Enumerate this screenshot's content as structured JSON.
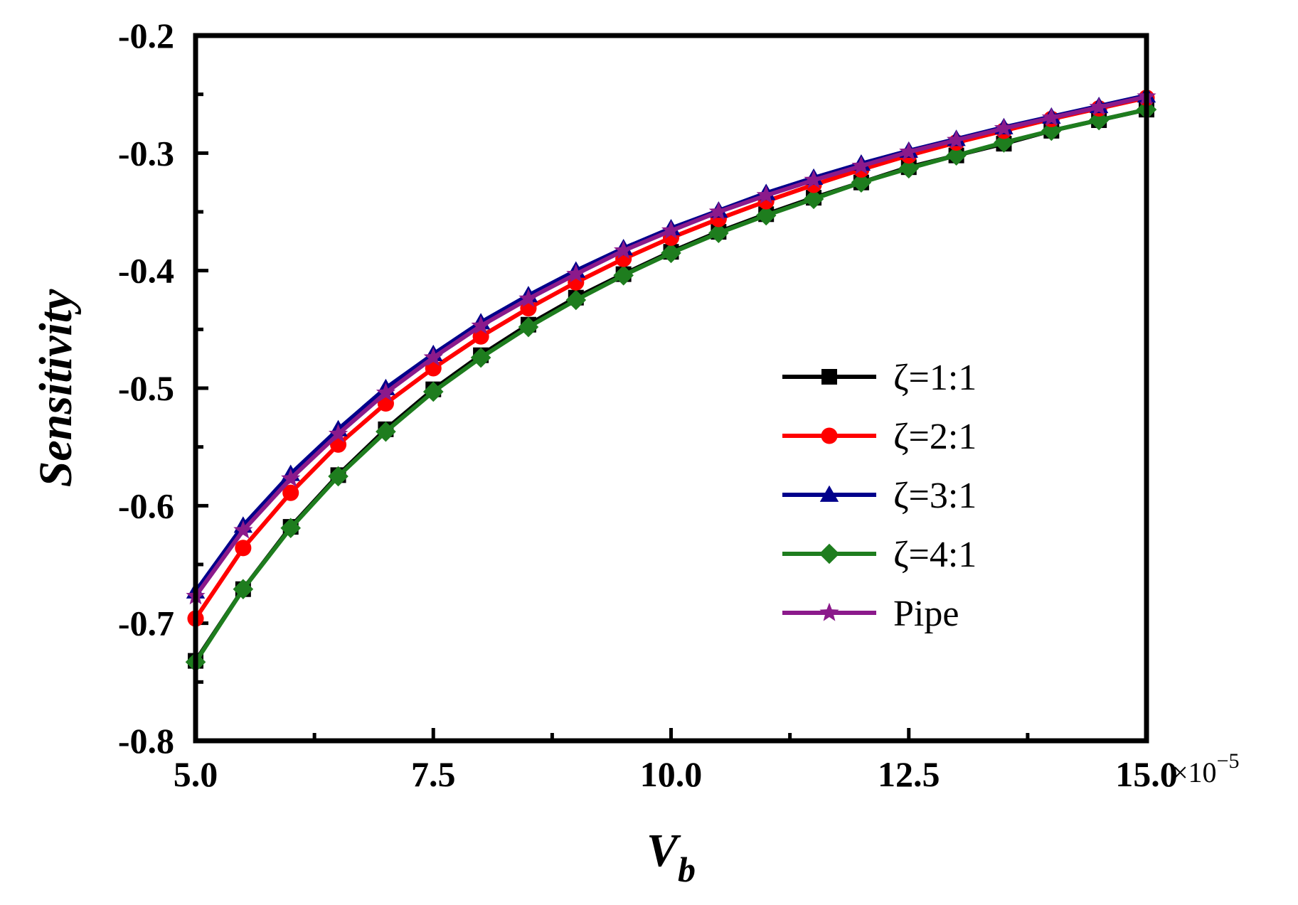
{
  "chart_data": {
    "type": "line",
    "title": "",
    "xlabel": "V",
    "xlabel_subscript": "b",
    "ylabel": "Sensitivity",
    "xlim": [
      5.0,
      15.0
    ],
    "ylim": [
      -0.8,
      -0.2
    ],
    "x_tick_labels": [
      "5.0",
      "7.5",
      "10.0",
      "12.5",
      "15.0"
    ],
    "x_ticks": [
      5.0,
      7.5,
      10.0,
      12.5,
      15.0
    ],
    "x_exponent_prefix": "×10",
    "x_exponent_power": "−5",
    "y_tick_labels": [
      "-0.2",
      "-0.3",
      "-0.4",
      "-0.5",
      "-0.6",
      "-0.7",
      "-0.8"
    ],
    "y_ticks": [
      -0.2,
      -0.3,
      -0.4,
      -0.5,
      -0.6,
      -0.7,
      -0.8
    ],
    "grid": false,
    "legend_position": "center-right",
    "x": [
      5.0,
      5.5,
      6.0,
      6.5,
      7.0,
      7.5,
      8.0,
      8.5,
      9.0,
      9.5,
      10.0,
      10.5,
      11.0,
      11.5,
      12.0,
      12.5,
      13.0,
      13.5,
      14.0,
      14.5,
      15.0
    ],
    "series": [
      {
        "name": "ζ=1:1",
        "color": "#000000",
        "marker": "square",
        "values": [
          -0.732,
          -0.671,
          -0.618,
          -0.574,
          -0.535,
          -0.501,
          -0.472,
          -0.446,
          -0.423,
          -0.403,
          -0.384,
          -0.367,
          -0.352,
          -0.338,
          -0.325,
          -0.312,
          -0.302,
          -0.292,
          -0.281,
          -0.272,
          -0.263
        ]
      },
      {
        "name": "ζ=2:1",
        "color": "#ff0000",
        "marker": "circle",
        "values": [
          -0.696,
          -0.636,
          -0.589,
          -0.548,
          -0.513,
          -0.483,
          -0.456,
          -0.432,
          -0.41,
          -0.39,
          -0.372,
          -0.356,
          -0.341,
          -0.327,
          -0.314,
          -0.302,
          -0.291,
          -0.281,
          -0.271,
          -0.262,
          -0.253
        ]
      },
      {
        "name": "ζ=3:1",
        "color": "#00008b",
        "marker": "triangle",
        "values": [
          -0.673,
          -0.617,
          -0.573,
          -0.535,
          -0.5,
          -0.471,
          -0.444,
          -0.421,
          -0.4,
          -0.381,
          -0.364,
          -0.349,
          -0.334,
          -0.321,
          -0.309,
          -0.298,
          -0.288,
          -0.278,
          -0.269,
          -0.26,
          -0.251
        ]
      },
      {
        "name": "ζ=4:1",
        "color": "#1e7d1e",
        "marker": "diamond",
        "values": [
          -0.733,
          -0.671,
          -0.619,
          -0.575,
          -0.537,
          -0.503,
          -0.474,
          -0.448,
          -0.425,
          -0.404,
          -0.385,
          -0.368,
          -0.353,
          -0.339,
          -0.325,
          -0.313,
          -0.302,
          -0.291,
          -0.281,
          -0.272,
          -0.263
        ]
      },
      {
        "name": "Pipe",
        "color": "#8b1a8b",
        "marker": "star",
        "values": [
          -0.677,
          -0.621,
          -0.577,
          -0.539,
          -0.504,
          -0.474,
          -0.447,
          -0.424,
          -0.403,
          -0.383,
          -0.366,
          -0.35,
          -0.336,
          -0.323,
          -0.311,
          -0.299,
          -0.289,
          -0.279,
          -0.27,
          -0.261,
          -0.252
        ]
      }
    ]
  }
}
